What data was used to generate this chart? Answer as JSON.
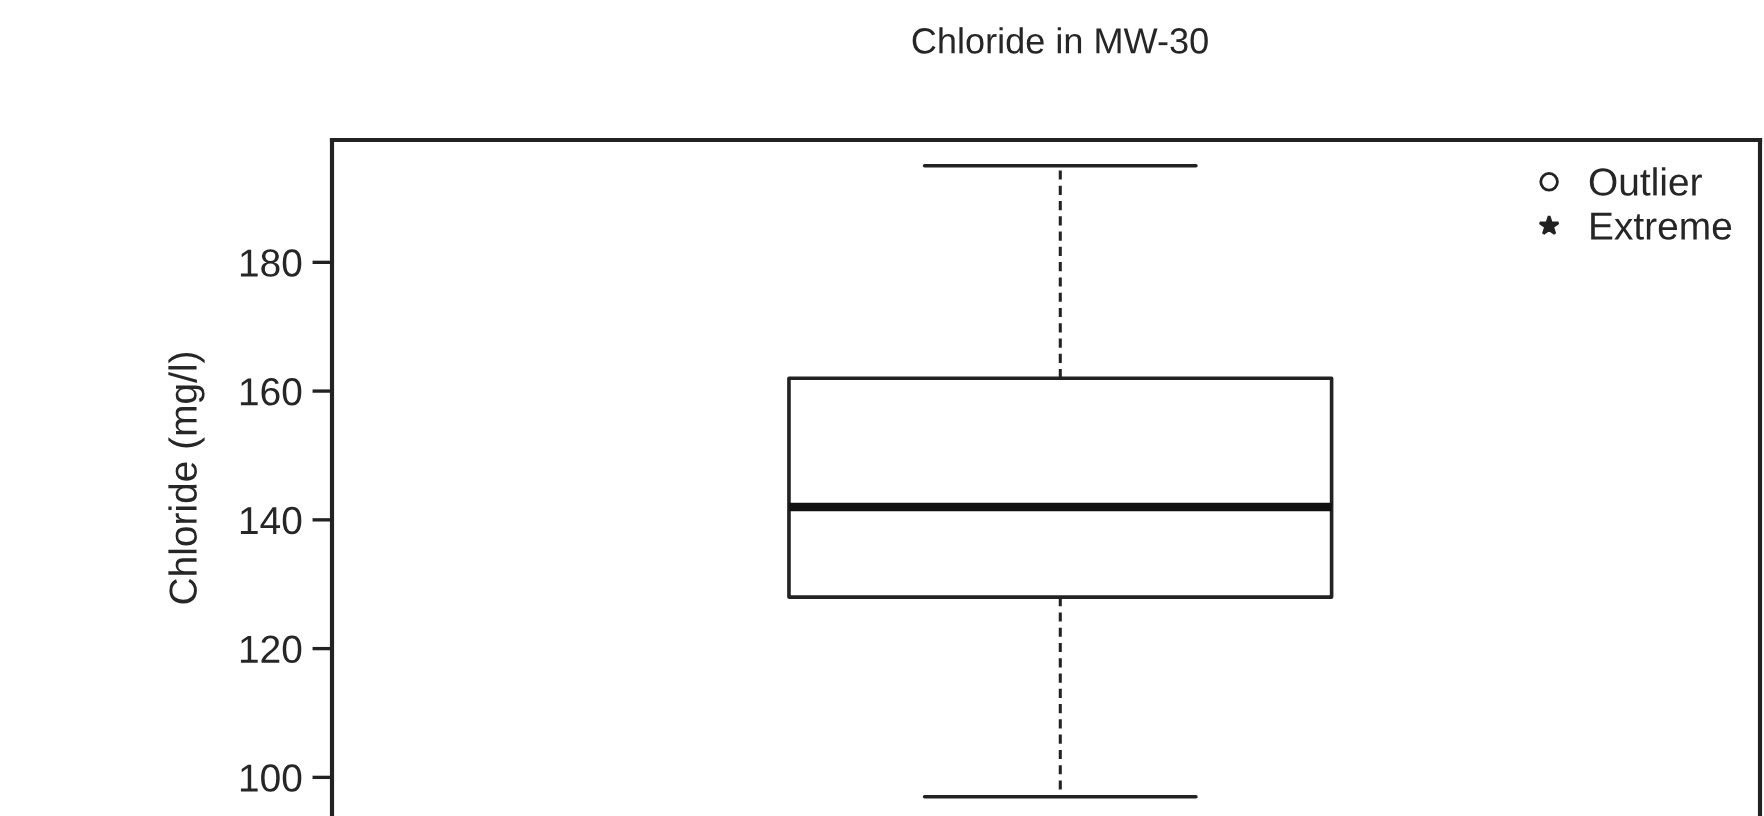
{
  "chart_data": {
    "type": "box",
    "title": "Chloride in MW-30",
    "ylabel": "Chloride (mg/l)",
    "categories": [
      null
    ],
    "boxes": [
      {
        "low": 97,
        "q1": 128,
        "median": 142,
        "q3": 162,
        "high": 195
      }
    ],
    "series": [
      {
        "name": "Outlier",
        "type": "scatter",
        "marker": "circle",
        "values": [
          null
        ]
      },
      {
        "name": "Extreme",
        "type": "scatter",
        "marker": "star",
        "values": [
          null
        ]
      }
    ],
    "ylim": [
      94,
      199
    ],
    "yticks": [
      100,
      120,
      140,
      160,
      180
    ],
    "grid": false,
    "legend": "top right",
    "tick_labels": "y"
  }
}
